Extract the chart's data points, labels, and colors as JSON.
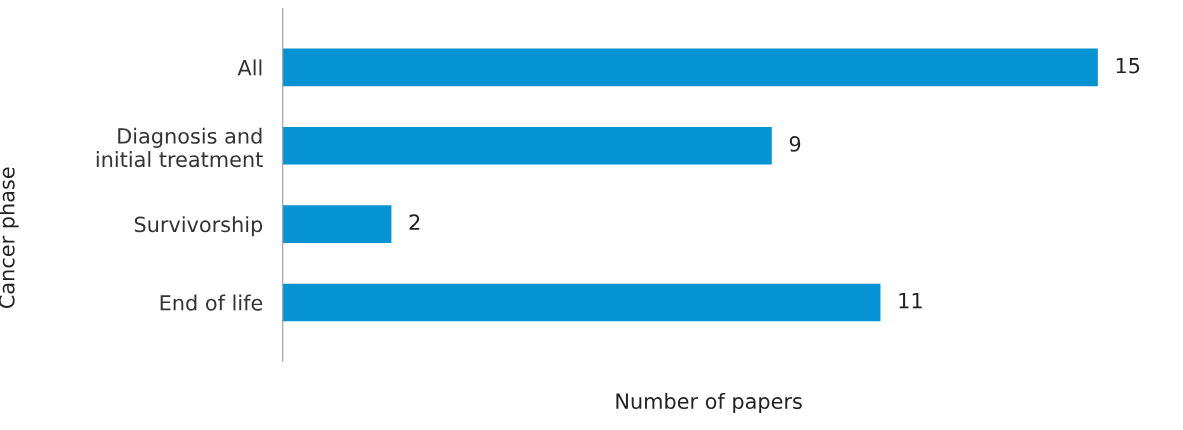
{
  "chart_data": {
    "type": "bar",
    "orientation": "horizontal",
    "xlabel": "Number of papers",
    "ylabel": "Cancer phase",
    "categories": [
      "All",
      "Diagnosis and\ninitial treatment",
      "Survivorship",
      "End of life"
    ],
    "values": [
      15,
      9,
      2,
      11
    ],
    "color": "#0593d3",
    "data_labels": true,
    "tick_labels": "y",
    "grid": false,
    "legend": false
  }
}
